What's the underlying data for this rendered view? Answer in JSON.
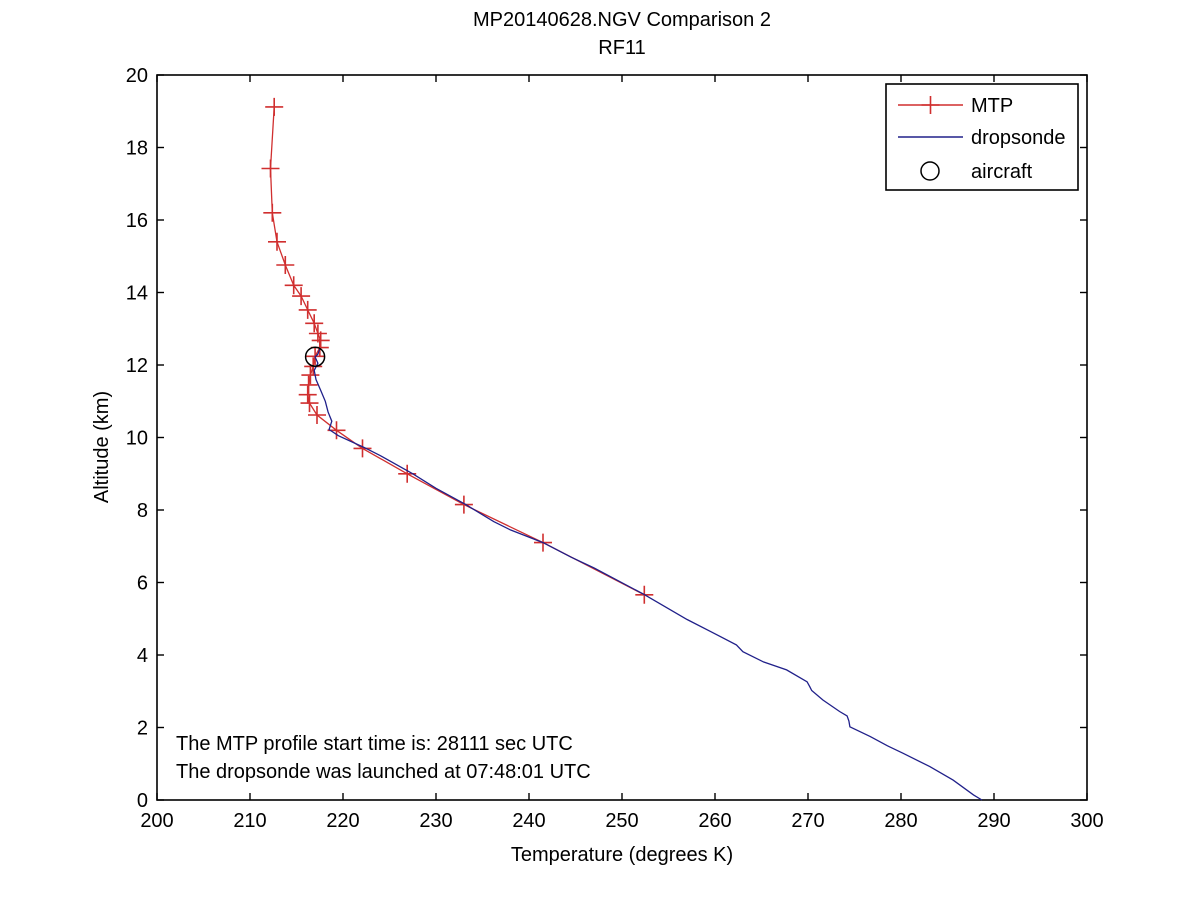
{
  "figure": {
    "title": "MP20140628.NGV Comparison 2",
    "subtitle": "RF11"
  },
  "annotations": {
    "line1": "The MTP profile start time is: 28111 sec UTC",
    "line2": "The dropsonde was launched at 07:48:01 UTC"
  },
  "colors": {
    "mtp": "#d02f2f",
    "dropsonde": "#20208a",
    "aircraft": "#000000",
    "frame": "#000000",
    "background": "#ffffff"
  },
  "chart_data": {
    "type": "line",
    "title": "MP20140628.NGV Comparison 2",
    "subtitle": "RF11",
    "xlabel": "Temperature (degrees K)",
    "ylabel": "Altitude (km)",
    "xlim": [
      200,
      300
    ],
    "ylim": [
      0,
      20
    ],
    "xticks": [
      200,
      210,
      220,
      230,
      240,
      250,
      260,
      270,
      280,
      290,
      300
    ],
    "yticks": [
      0,
      2,
      4,
      6,
      8,
      10,
      12,
      14,
      16,
      18,
      20
    ],
    "grid": false,
    "legend": {
      "position": "top-right",
      "entries": [
        {
          "label": "MTP",
          "color": "#d02f2f",
          "marker": "plus",
          "line": true
        },
        {
          "label": "dropsonde",
          "color": "#20208a",
          "marker": "none",
          "line": true
        },
        {
          "label": "aircraft",
          "color": "#000000",
          "marker": "circle",
          "line": false
        }
      ]
    },
    "series": [
      {
        "name": "MTP",
        "style": "line+marker",
        "marker": "plus",
        "color": "#d02f2f",
        "x_units": "K",
        "y_units": "km",
        "points": [
          [
            212.6,
            19.12
          ],
          [
            212.2,
            17.42
          ],
          [
            212.4,
            16.2
          ],
          [
            212.9,
            15.4
          ],
          [
            213.8,
            14.76
          ],
          [
            214.7,
            14.2
          ],
          [
            215.5,
            13.9
          ],
          [
            216.2,
            13.52
          ],
          [
            216.9,
            13.15
          ],
          [
            217.3,
            12.87
          ],
          [
            217.6,
            12.68
          ],
          [
            217.5,
            12.48
          ],
          [
            217.0,
            12.24
          ],
          [
            216.8,
            11.96
          ],
          [
            216.5,
            11.72
          ],
          [
            216.3,
            11.45
          ],
          [
            216.2,
            11.18
          ],
          [
            216.4,
            10.95
          ],
          [
            217.2,
            10.62
          ],
          [
            219.3,
            10.2
          ],
          [
            222.1,
            9.7
          ],
          [
            226.9,
            9.0
          ],
          [
            233.0,
            8.15
          ],
          [
            241.5,
            7.1
          ],
          [
            252.4,
            5.66
          ]
        ]
      },
      {
        "name": "dropsonde",
        "style": "line",
        "marker": "none",
        "color": "#20208a",
        "x_units": "K",
        "y_units": "km",
        "points": [
          [
            217.5,
            12.45
          ],
          [
            217.3,
            12.3
          ],
          [
            217.0,
            12.22
          ],
          [
            217.3,
            12.05
          ],
          [
            216.9,
            11.85
          ],
          [
            217.1,
            11.6
          ],
          [
            217.6,
            11.3
          ],
          [
            218.1,
            11.0
          ],
          [
            218.4,
            10.7
          ],
          [
            218.8,
            10.45
          ],
          [
            218.5,
            10.22
          ],
          [
            219.5,
            10.05
          ],
          [
            222.3,
            9.72
          ],
          [
            224.0,
            9.5
          ],
          [
            227.5,
            9.0
          ],
          [
            230.0,
            8.6
          ],
          [
            233.2,
            8.15
          ],
          [
            236.2,
            7.68
          ],
          [
            238.0,
            7.45
          ],
          [
            241.5,
            7.1
          ],
          [
            244.5,
            6.7
          ],
          [
            247.0,
            6.4
          ],
          [
            252.3,
            5.68
          ],
          [
            257.0,
            4.98
          ],
          [
            259.5,
            4.65
          ],
          [
            262.3,
            4.28
          ],
          [
            263.0,
            4.09
          ],
          [
            265.2,
            3.81
          ],
          [
            267.7,
            3.59
          ],
          [
            269.9,
            3.26
          ],
          [
            270.2,
            3.12
          ],
          [
            270.4,
            3.02
          ],
          [
            271.6,
            2.76
          ],
          [
            273.4,
            2.44
          ],
          [
            274.2,
            2.32
          ],
          [
            274.4,
            2.18
          ],
          [
            274.5,
            2.02
          ],
          [
            276.7,
            1.75
          ],
          [
            278.5,
            1.5
          ],
          [
            280.2,
            1.29
          ],
          [
            283.1,
            0.92
          ],
          [
            285.6,
            0.55
          ],
          [
            287.8,
            0.14
          ],
          [
            288.7,
            0.0
          ]
        ]
      },
      {
        "name": "aircraft",
        "style": "marker",
        "marker": "circle",
        "color": "#000000",
        "x_units": "K",
        "y_units": "km",
        "points": [
          [
            217.0,
            12.23
          ]
        ]
      }
    ]
  }
}
